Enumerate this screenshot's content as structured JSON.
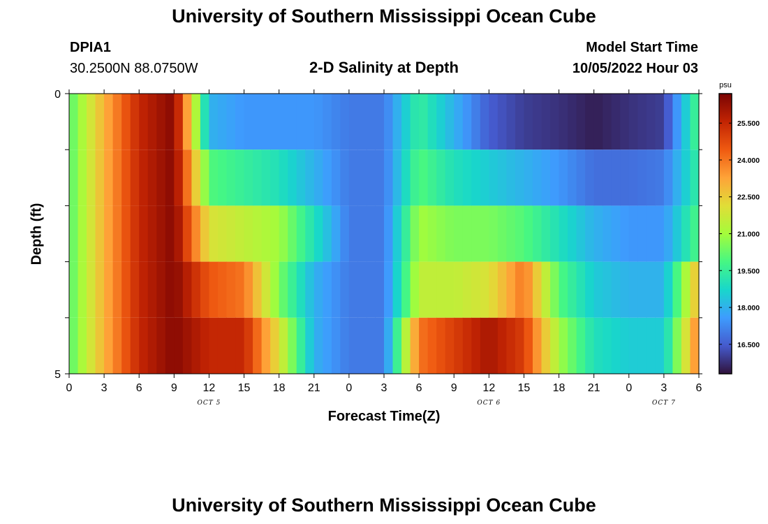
{
  "header": {
    "title": "University of Southern Mississippi Ocean Cube",
    "station": "DPIA1",
    "coordinates": "30.2500N  88.0750W",
    "subtitle": "2-D Salinity at Depth",
    "model_start_label": "Model Start Time",
    "model_start_value": "10/05/2022 Hour 03"
  },
  "footer": {
    "title": "University of Southern Mississippi Ocean Cube"
  },
  "chart_data": {
    "type": "heatmap",
    "title": "2-D Salinity at Depth",
    "xlabel": "Forecast Time(Z)",
    "ylabel": "Depth (ft)",
    "x_ticks": [
      "0",
      "3",
      "6",
      "9",
      "12",
      "15",
      "18",
      "21",
      "0",
      "3",
      "6",
      "9",
      "12",
      "15",
      "18",
      "21",
      "0",
      "3",
      "6"
    ],
    "date_labels": [
      {
        "label": "OCT 5",
        "hour": 12
      },
      {
        "label": "OCT 6",
        "hour": 36
      },
      {
        "label": "OCT 7",
        "hour": 51
      }
    ],
    "y_ticks": [
      "0",
      "5"
    ],
    "ylim": [
      0,
      5
    ],
    "xlim": [
      0,
      54
    ],
    "depth_layers": 5,
    "colorbar": {
      "unit": "psu",
      "min": 15.3,
      "max": 26.7,
      "ticks": [
        "25.500",
        "24.000",
        "22.500",
        "21.000",
        "19.500",
        "18.000",
        "16.500"
      ],
      "tick_values": [
        25.5,
        24.0,
        22.5,
        21.0,
        19.5,
        18.0,
        16.5
      ]
    },
    "time_hours": [
      0,
      3,
      6,
      9,
      12,
      15,
      18,
      21,
      24,
      27,
      30,
      33,
      36,
      39,
      42,
      45,
      48,
      51,
      54
    ],
    "salinity_by_layer": [
      {
        "layer": "0-1 ft",
        "values": [
          20.0,
          23.0,
          25.5,
          26.5,
          18.0,
          17.5,
          17.5,
          17.5,
          17.0,
          17.0,
          19.5,
          18.0,
          16.5,
          16.0,
          15.8,
          15.5,
          15.8,
          16.0,
          20.0
        ]
      },
      {
        "layer": "1-2 ft",
        "values": [
          20.0,
          23.0,
          25.5,
          26.5,
          20.0,
          19.5,
          19.0,
          18.0,
          17.0,
          17.0,
          20.0,
          19.0,
          18.5,
          18.0,
          17.5,
          16.8,
          16.8,
          17.0,
          19.5
        ]
      },
      {
        "layer": "2-3 ft",
        "values": [
          20.0,
          23.0,
          25.5,
          26.5,
          22.0,
          21.5,
          21.0,
          19.0,
          17.0,
          17.0,
          21.0,
          20.5,
          20.5,
          20.0,
          19.0,
          18.0,
          17.5,
          17.5,
          20.0
        ]
      },
      {
        "layer": "3-4 ft",
        "values": [
          20.0,
          23.0,
          25.5,
          26.5,
          24.5,
          24.0,
          20.5,
          18.0,
          17.0,
          17.0,
          21.5,
          21.5,
          22.0,
          24.0,
          20.0,
          18.5,
          18.0,
          18.0,
          23.0
        ]
      },
      {
        "layer": "4-5 ft",
        "values": [
          20.0,
          23.0,
          25.5,
          26.5,
          25.5,
          25.5,
          22.0,
          18.0,
          17.0,
          17.0,
          24.0,
          25.0,
          26.0,
          25.0,
          21.0,
          19.0,
          18.5,
          18.5,
          24.0
        ]
      }
    ]
  }
}
